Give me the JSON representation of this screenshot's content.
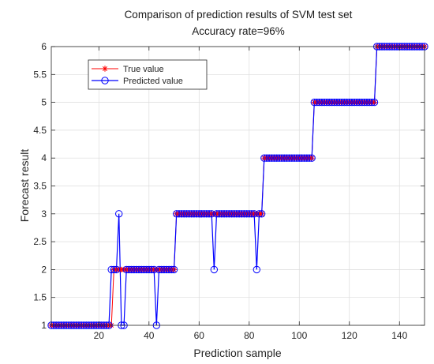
{
  "chart_data": {
    "type": "line",
    "title": "Comparison of prediction results of SVM test set",
    "subtitle": "Accuracy rate=96%",
    "xlabel": "Prediction sample",
    "ylabel": "Forecast result",
    "xlim": [
      1,
      150
    ],
    "ylim": [
      1,
      6
    ],
    "x_ticks": [
      20,
      40,
      60,
      80,
      100,
      120,
      140
    ],
    "y_ticks": [
      1,
      1.5,
      2,
      2.5,
      3,
      3.5,
      4,
      4.5,
      5,
      5.5,
      6
    ],
    "y_tick_labels": [
      "1",
      "1.5",
      "2",
      "2.5",
      "3",
      "3.5",
      "4",
      "4.5",
      "5",
      "5.5",
      "6"
    ],
    "grid": true,
    "legend_position": "top-left",
    "series": [
      {
        "name": "True value",
        "color": "#ff0000",
        "marker": "asterisk",
        "segments": [
          {
            "from": 1,
            "to": 25,
            "value": 1
          },
          {
            "from": 26,
            "to": 50,
            "value": 2
          },
          {
            "from": 51,
            "to": 85,
            "value": 3
          },
          {
            "from": 86,
            "to": 105,
            "value": 4
          },
          {
            "from": 106,
            "to": 130,
            "value": 5
          },
          {
            "from": 131,
            "to": 150,
            "value": 6
          }
        ]
      },
      {
        "name": "Predicted value",
        "color": "#0000ff",
        "marker": "circle",
        "overrides": [
          {
            "x": 25,
            "value": 2
          },
          {
            "x": 28,
            "value": 3
          },
          {
            "x": 29,
            "value": 1
          },
          {
            "x": 30,
            "value": 1
          },
          {
            "x": 43,
            "value": 1
          },
          {
            "x": 66,
            "value": 2
          },
          {
            "x": 83,
            "value": 2
          }
        ]
      }
    ]
  }
}
